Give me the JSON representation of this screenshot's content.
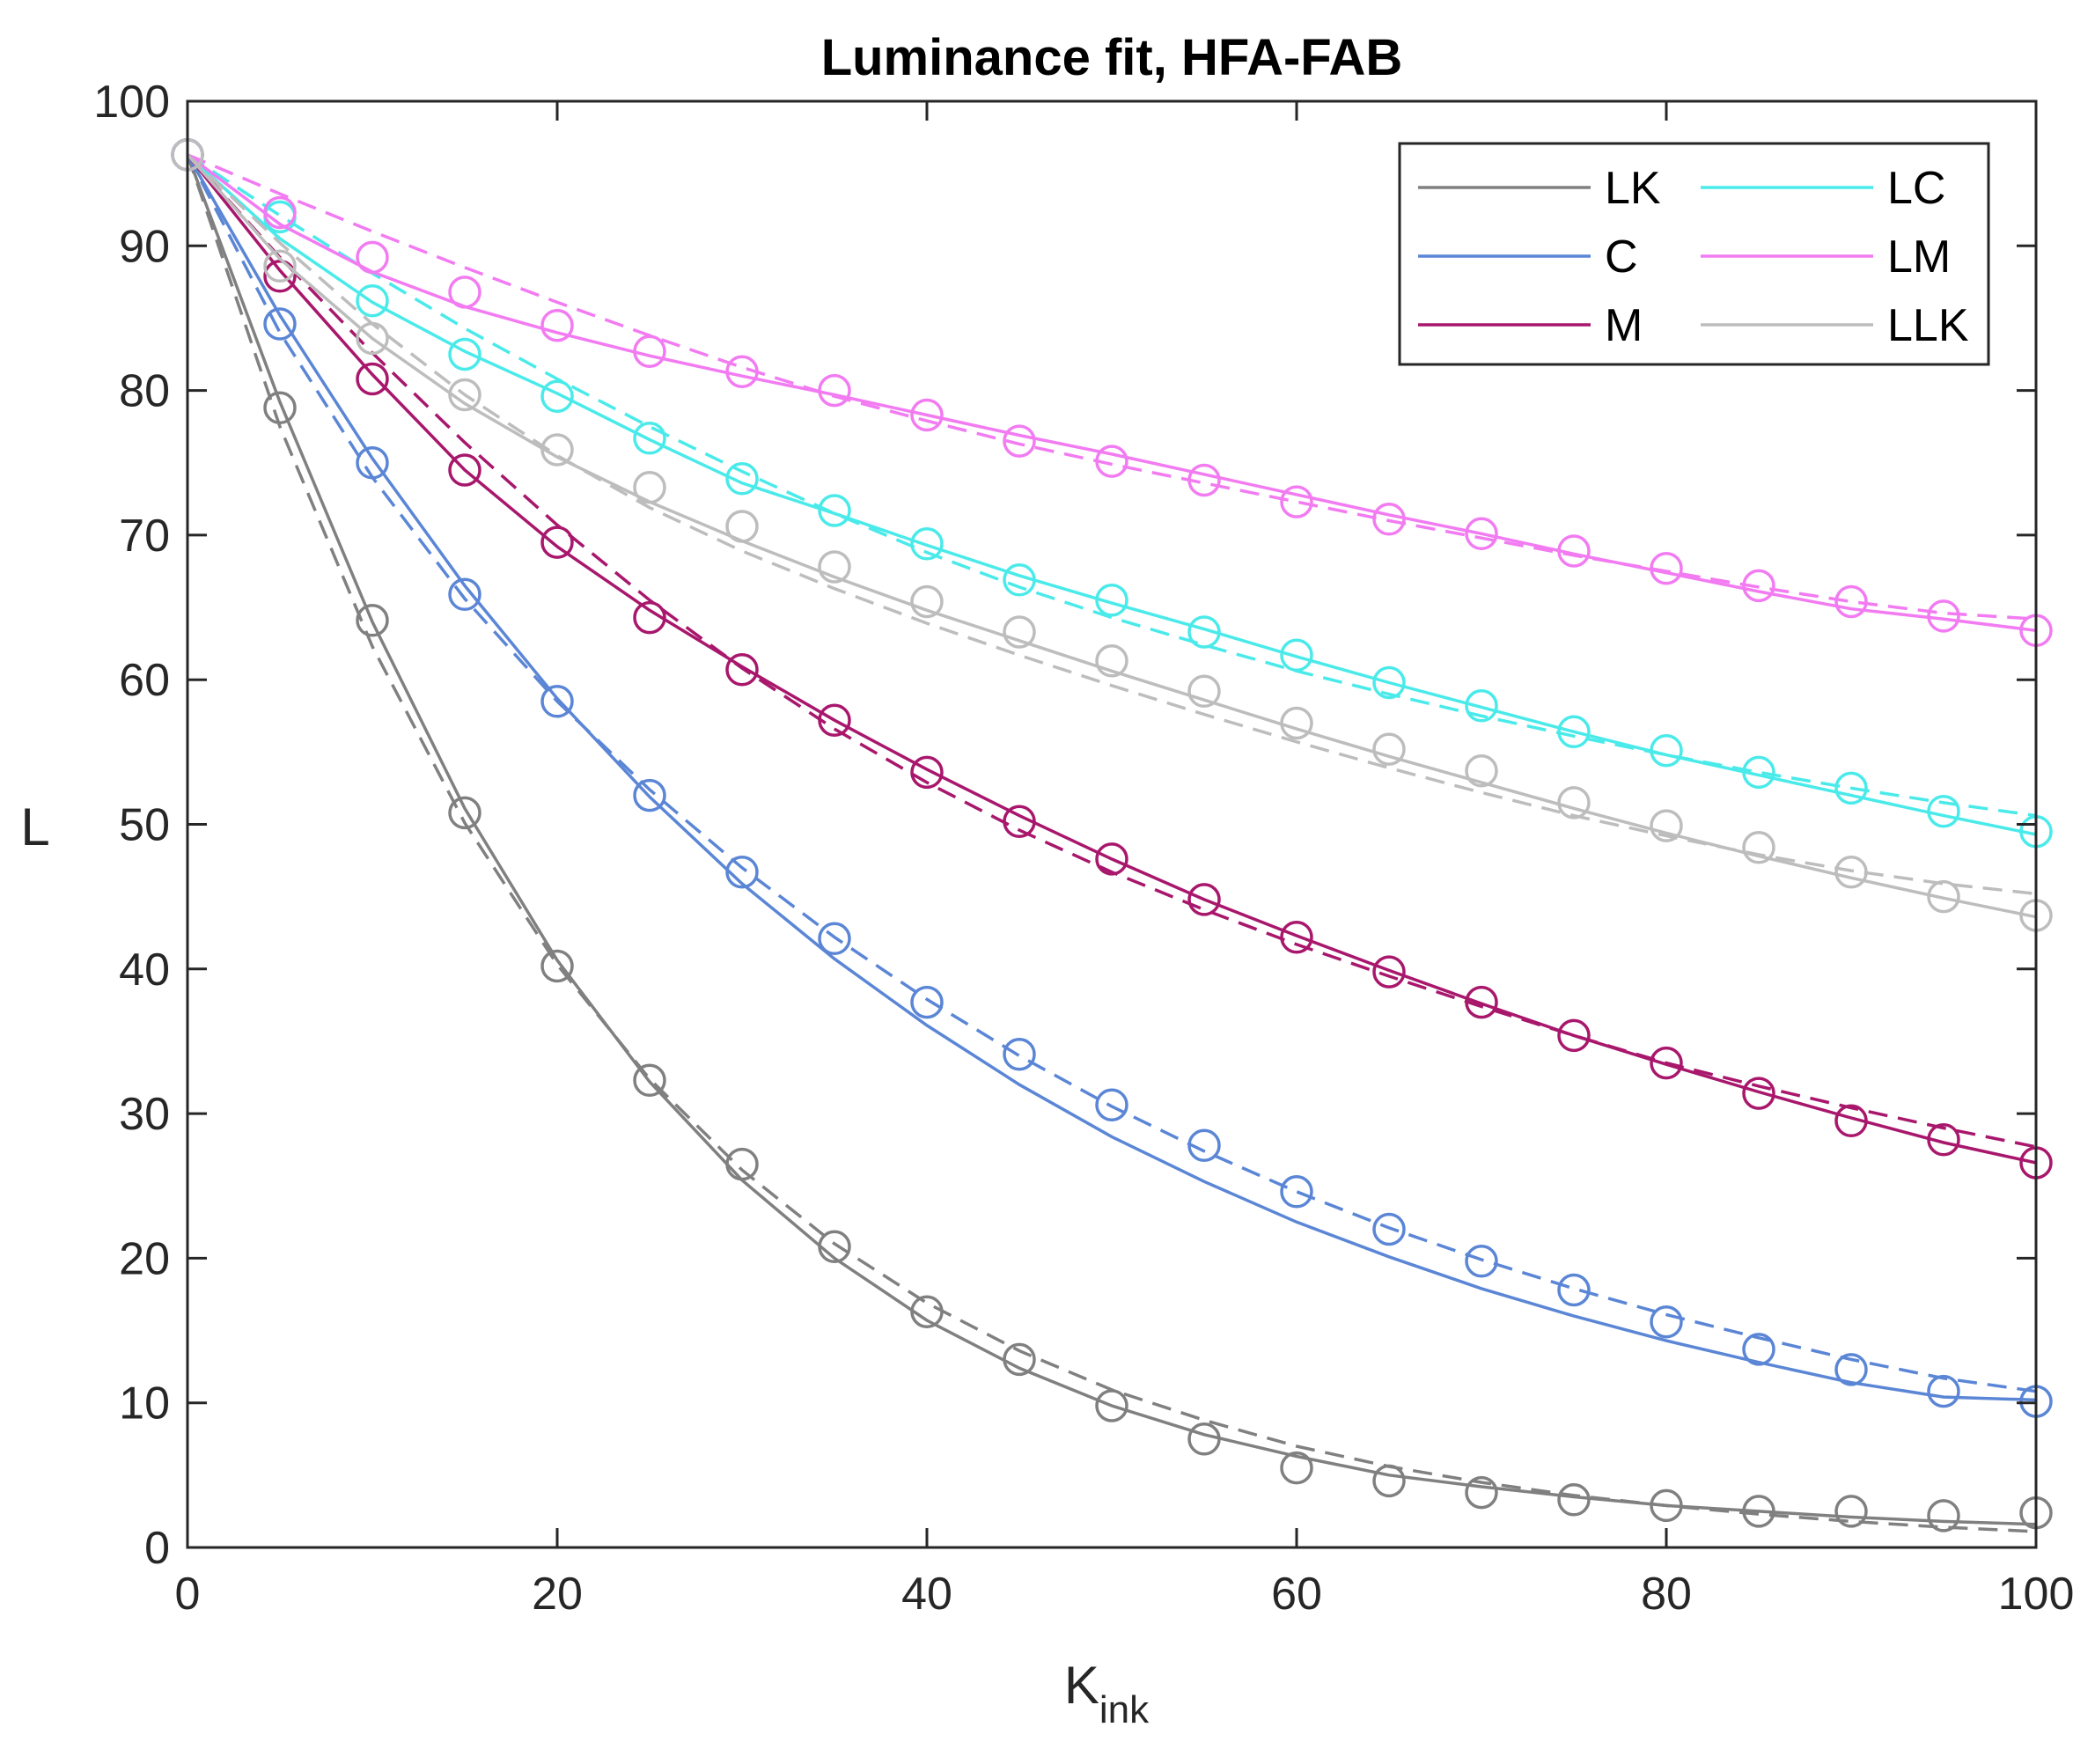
{
  "chart_data": {
    "type": "line",
    "title": "Luminance fit, HFA-FAB",
    "xlabel": "K",
    "xlabel_subscript": "ink",
    "ylabel": "L",
    "xlim": [
      0,
      100
    ],
    "ylim": [
      0,
      100
    ],
    "x_ticks": [
      "0",
      "20",
      "40",
      "60",
      "80",
      "100"
    ],
    "y_ticks": [
      "0",
      "10",
      "20",
      "30",
      "40",
      "50",
      "60",
      "70",
      "80",
      "90",
      "100"
    ],
    "grid": false,
    "legend_position": "top-right",
    "x": [
      0,
      5,
      10,
      15,
      20,
      25,
      30,
      35,
      40,
      45,
      50,
      55,
      60,
      65,
      70,
      75,
      80,
      85,
      90,
      95,
      100
    ],
    "series": [
      {
        "name": "LK",
        "color": "#808080",
        "measured": [
          96.3,
          78.8,
          64.1,
          50.8,
          40.2,
          32.3,
          26.5,
          20.8,
          16.3,
          13.0,
          9.8,
          7.5,
          5.5,
          4.6,
          3.8,
          3.3,
          2.9,
          2.5,
          2.5,
          2.2,
          2.4
        ],
        "fit_solid": [
          96.3,
          79.2,
          64.0,
          51.1,
          40.6,
          32.2,
          25.4,
          20.0,
          15.7,
          12.4,
          9.8,
          7.8,
          6.3,
          5.0,
          4.2,
          3.5,
          2.9,
          2.5,
          2.1,
          1.8,
          1.6
        ],
        "fit_dashed": [
          96.3,
          77.5,
          62.3,
          50.1,
          40.3,
          32.4,
          26.1,
          21.0,
          16.9,
          13.6,
          10.9,
          8.8,
          7.0,
          5.6,
          4.5,
          3.6,
          2.9,
          2.3,
          1.8,
          1.4,
          1.1
        ]
      },
      {
        "name": "C",
        "color": "#5b86d6",
        "measured": [
          96.3,
          84.6,
          75.0,
          65.9,
          58.5,
          52.0,
          46.7,
          42.1,
          37.7,
          34.1,
          30.6,
          27.8,
          24.6,
          22.0,
          19.8,
          17.8,
          15.6,
          13.7,
          12.3,
          10.8,
          10.1
        ],
        "fit_solid": [
          96.3,
          85.2,
          75.3,
          66.5,
          58.7,
          51.9,
          45.9,
          40.7,
          36.1,
          32.0,
          28.4,
          25.3,
          22.5,
          20.1,
          17.9,
          16.0,
          14.3,
          12.8,
          11.4,
          10.4,
          10.2
        ],
        "fit_dashed": [
          96.3,
          84.0,
          74.0,
          65.6,
          58.5,
          52.4,
          47.0,
          42.2,
          37.9,
          34.0,
          30.5,
          27.4,
          24.6,
          22.1,
          19.9,
          17.9,
          16.1,
          14.5,
          13.0,
          11.7,
          10.8
        ]
      },
      {
        "name": "M",
        "color": "#a8176c",
        "measured": [
          96.3,
          87.9,
          80.8,
          74.5,
          69.5,
          64.3,
          60.7,
          57.2,
          53.6,
          50.2,
          47.6,
          44.8,
          42.2,
          39.8,
          37.7,
          35.4,
          33.5,
          31.4,
          29.5,
          28.2,
          26.6
        ],
        "fit_solid": [
          96.3,
          88.3,
          81.1,
          74.5,
          69.2,
          64.8,
          60.9,
          57.2,
          53.8,
          50.6,
          47.6,
          44.8,
          42.3,
          39.9,
          37.6,
          35.4,
          33.4,
          31.5,
          29.7,
          28.0,
          26.6
        ],
        "fit_dashed": [
          96.3,
          89.2,
          82.6,
          76.4,
          70.7,
          65.5,
          60.8,
          56.6,
          52.9,
          49.6,
          46.7,
          44.1,
          41.7,
          39.5,
          37.4,
          35.4,
          33.5,
          31.9,
          30.4,
          29.0,
          27.7
        ]
      },
      {
        "name": "LC",
        "color": "#4aeaea",
        "measured": [
          96.3,
          92.0,
          86.2,
          82.5,
          79.6,
          76.7,
          73.9,
          71.7,
          69.4,
          66.9,
          65.5,
          63.3,
          61.7,
          59.8,
          58.2,
          56.4,
          55.1,
          53.6,
          52.5,
          50.9,
          49.5
        ],
        "fit_solid": [
          96.3,
          90.5,
          86.1,
          82.7,
          79.8,
          76.6,
          73.6,
          71.5,
          69.3,
          67.2,
          65.3,
          63.5,
          61.6,
          59.8,
          58.1,
          56.4,
          54.8,
          53.4,
          52.0,
          50.6,
          49.3
        ],
        "fit_dashed": [
          96.3,
          92.1,
          88.1,
          84.3,
          80.8,
          77.5,
          74.4,
          71.5,
          68.8,
          66.4,
          64.3,
          62.4,
          60.6,
          59.0,
          57.5,
          56.1,
          54.8,
          53.6,
          52.5,
          51.5,
          50.6
        ]
      },
      {
        "name": "LM",
        "color": "#f27bf2",
        "measured": [
          96.3,
          92.3,
          89.2,
          86.8,
          84.5,
          82.7,
          81.3,
          80.0,
          78.3,
          76.5,
          75.1,
          73.8,
          72.3,
          71.1,
          70.1,
          68.9,
          67.7,
          66.5,
          65.4,
          64.4,
          63.4
        ],
        "fit_solid": [
          96.3,
          91.5,
          88.2,
          85.8,
          84.0,
          82.4,
          81.0,
          79.7,
          78.3,
          76.9,
          75.6,
          74.2,
          72.8,
          71.4,
          70.1,
          68.7,
          67.4,
          66.1,
          64.9,
          64.2,
          63.4
        ],
        "fit_dashed": [
          96.3,
          93.6,
          91.0,
          88.5,
          86.1,
          83.8,
          81.6,
          79.6,
          77.9,
          76.3,
          74.9,
          73.6,
          72.3,
          71.0,
          69.8,
          68.6,
          67.5,
          66.4,
          65.4,
          64.6,
          64.2
        ]
      },
      {
        "name": "LLK",
        "color": "#bdbdbd",
        "measured": [
          96.3,
          88.6,
          83.6,
          79.7,
          75.9,
          73.3,
          70.6,
          67.8,
          65.4,
          63.3,
          61.3,
          59.2,
          57.0,
          55.2,
          53.7,
          51.5,
          49.9,
          48.4,
          46.7,
          45.0,
          43.7
        ],
        "fit_solid": [
          96.3,
          89.1,
          83.6,
          79.1,
          75.4,
          72.3,
          69.6,
          67.1,
          64.8,
          62.7,
          60.6,
          58.6,
          56.6,
          54.7,
          52.9,
          51.1,
          49.4,
          47.8,
          46.3,
          44.9,
          43.6
        ],
        "fit_dashed": [
          96.3,
          90.2,
          84.6,
          79.7,
          75.5,
          71.9,
          68.9,
          66.3,
          63.9,
          61.7,
          59.6,
          57.6,
          55.7,
          53.9,
          52.2,
          50.6,
          49.2,
          47.9,
          46.8,
          45.9,
          45.2
        ]
      }
    ],
    "legend_order": [
      "LK",
      "LC",
      "C",
      "LM",
      "M",
      "LLK"
    ]
  }
}
